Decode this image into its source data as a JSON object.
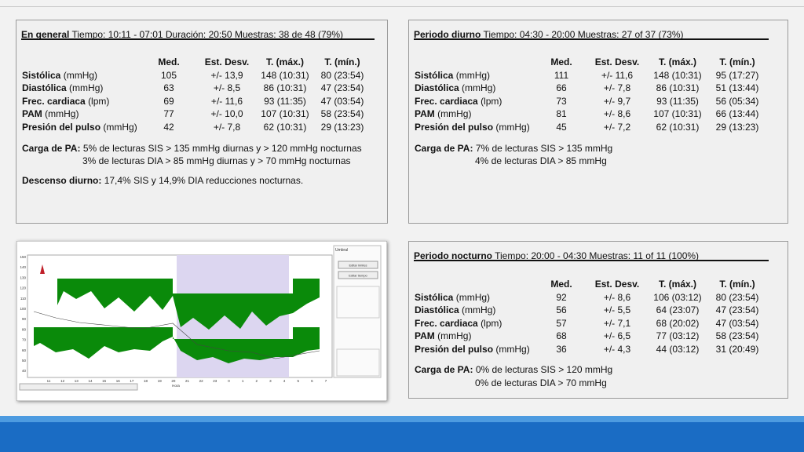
{
  "panels": [
    {
      "title": "En general",
      "header": "Tiempo: 10:11 - 07:01 Duración: 20:50 Muestras: 38 de 48 (79%)",
      "columns": [
        "Med.",
        "Est. Desv.",
        "T. (máx.)",
        "T. (mín.)"
      ],
      "rows": [
        {
          "label": "Sistólica",
          "unit": "(mmHg)",
          "values": [
            "105",
            "+/- 13,9",
            "148 (10:31)",
            "80 (23:54)"
          ]
        },
        {
          "label": "Diastólica",
          "unit": "(mmHg)",
          "values": [
            "63",
            "+/- 8,5",
            "86 (10:31)",
            "47 (23:54)"
          ]
        },
        {
          "label": "Frec. cardiaca",
          "unit": "(lpm)",
          "values": [
            "69",
            "+/- 11,6",
            "93 (11:35)",
            "47 (03:54)"
          ]
        },
        {
          "label": "PAM",
          "unit": "(mmHg)",
          "values": [
            "77",
            "+/- 10,0",
            "107 (10:31)",
            "58 (23:54)"
          ]
        },
        {
          "label": "Presión del pulso",
          "unit": "(mmHg)",
          "values": [
            "42",
            "+/- 7,8",
            "62 (10:31)",
            "29 (13:23)"
          ]
        }
      ],
      "notes": [
        {
          "label": "Carga de PA:",
          "text": "5% de lecturas SIS > 135 mmHg diurnas y > 120 mmHg nocturnas"
        },
        {
          "text": "3% de lecturas DIA > 85 mmHg diurnas y > 70 mmHg nocturnas"
        },
        {
          "label": "Descenso diurno:",
          "text": "17,4% SIS y 14,9% DIA reducciones nocturnas."
        }
      ]
    },
    {
      "title": "Periodo diurno",
      "header": "Tiempo: 04:30 - 20:00 Muestras: 27 of 37 (73%)",
      "columns": [
        "Med.",
        "Est. Desv.",
        "T. (máx.)",
        "T. (mín.)"
      ],
      "rows": [
        {
          "label": "Sistólica",
          "unit": "(mmHg)",
          "values": [
            "111",
            "+/- 11,6",
            "148 (10:31)",
            "95 (17:27)"
          ]
        },
        {
          "label": "Diastólica",
          "unit": "(mmHg)",
          "values": [
            "66",
            "+/- 7,8",
            "86 (10:31)",
            "51 (13:44)"
          ]
        },
        {
          "label": "Frec. cardiaca",
          "unit": "(lpm)",
          "values": [
            "73",
            "+/- 9,7",
            "93 (11:35)",
            "56 (05:34)"
          ]
        },
        {
          "label": "PAM",
          "unit": "(mmHg)",
          "values": [
            "81",
            "+/- 8,6",
            "107 (10:31)",
            "66 (13:44)"
          ]
        },
        {
          "label": "Presión del pulso",
          "unit": "(mmHg)",
          "values": [
            "45",
            "+/- 7,2",
            "62 (10:31)",
            "29 (13:23)"
          ]
        }
      ],
      "notes": [
        {
          "label": "Carga de PA:",
          "text": "7% de lecturas SIS > 135 mmHg"
        },
        {
          "text": "4% de lecturas DIA > 85 mmHg"
        }
      ]
    },
    {
      "title": "Periodo nocturno",
      "header": "Tiempo: 20:00 - 04:30 Muestras: 11 of 11 (100%)",
      "columns": [
        "Med.",
        "Est. Desv.",
        "T. (máx.)",
        "T. (mín.)"
      ],
      "rows": [
        {
          "label": "Sistólica",
          "unit": "(mmHg)",
          "values": [
            "92",
            "+/- 8,6",
            "106 (03:12)",
            "80 (23:54)"
          ]
        },
        {
          "label": "Diastólica",
          "unit": "(mmHg)",
          "values": [
            "56",
            "+/- 5,5",
            "64 (23:07)",
            "47 (23:54)"
          ]
        },
        {
          "label": "Frec. cardiaca",
          "unit": "(lpm)",
          "values": [
            "57",
            "+/- 7,1",
            "68 (20:02)",
            "47 (03:54)"
          ]
        },
        {
          "label": "PAM",
          "unit": "(mmHg)",
          "values": [
            "68",
            "+/- 6,5",
            "77 (03:12)",
            "58 (23:54)"
          ]
        },
        {
          "label": "Presión del pulso",
          "unit": "(mmHg)",
          "values": [
            "36",
            "+/- 4,3",
            "44 (03:12)",
            "31 (20:49)"
          ]
        }
      ],
      "notes": [
        {
          "label": "Carga de PA:",
          "text": "0% de lecturas SIS > 120 mmHg"
        },
        {
          "text": "0% de lecturas DIA > 70 mmHg"
        }
      ]
    }
  ],
  "thumbnail": {
    "side_tab": "Umbral",
    "buttons": [
      "Editar límites",
      "Editar tiempo"
    ],
    "x_label": "Hora",
    "yticks": [
      "150",
      "140",
      "130",
      "120",
      "110",
      "100",
      "90",
      "80",
      "70",
      "60",
      "50",
      "40"
    ],
    "xticks": [
      "11",
      "12",
      "13",
      "14",
      "15",
      "16",
      "17",
      "18",
      "19",
      "20",
      "21",
      "22",
      "23",
      "0",
      "1",
      "2",
      "3",
      "4",
      "5",
      "6",
      "7"
    ]
  }
}
